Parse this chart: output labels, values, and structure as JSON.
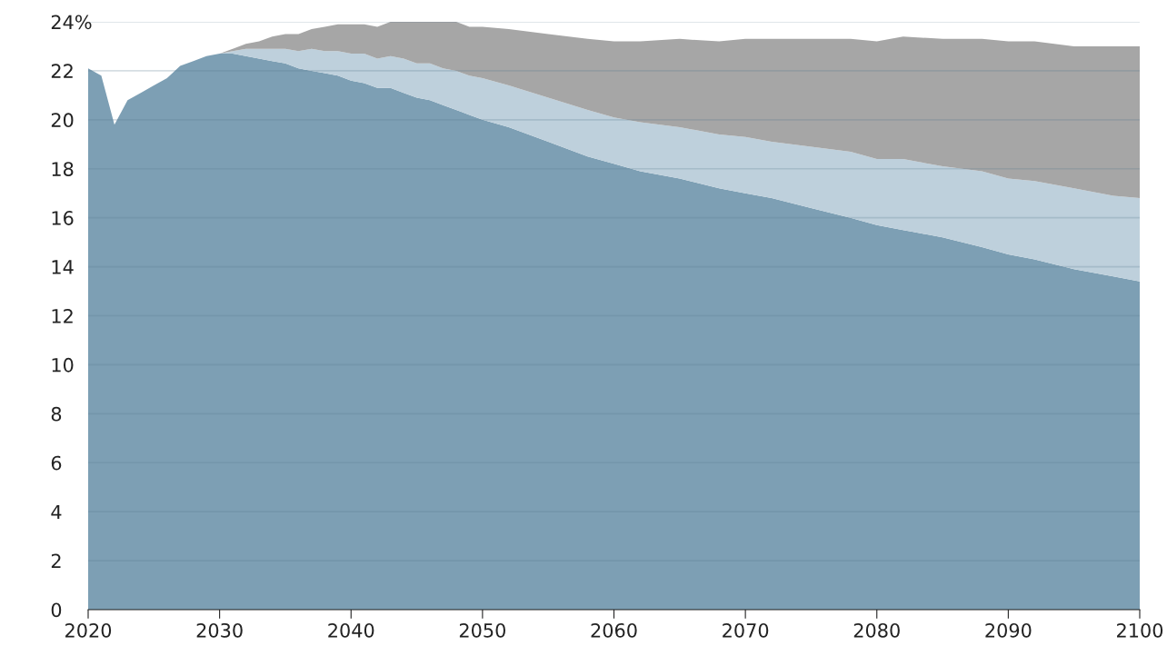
{
  "chart_data": {
    "type": "area",
    "stacked": true,
    "x": [
      2020,
      2021,
      2022,
      2023,
      2024,
      2025,
      2026,
      2027,
      2028,
      2029,
      2030,
      2031,
      2032,
      2033,
      2034,
      2035,
      2036,
      2037,
      2038,
      2039,
      2040,
      2041,
      2042,
      2043,
      2044,
      2045,
      2046,
      2047,
      2048,
      2049,
      2050,
      2052,
      2055,
      2058,
      2060,
      2062,
      2065,
      2068,
      2070,
      2072,
      2075,
      2078,
      2080,
      2082,
      2085,
      2088,
      2090,
      2092,
      2095,
      2098,
      2100
    ],
    "series": [
      {
        "color": "#7d9fb4",
        "values": [
          22.1,
          21.8,
          19.8,
          20.8,
          21.1,
          21.4,
          21.7,
          22.2,
          22.4,
          22.6,
          22.7,
          22.7,
          22.6,
          22.5,
          22.4,
          22.3,
          22.1,
          22.0,
          21.9,
          21.8,
          21.6,
          21.5,
          21.3,
          21.3,
          21.1,
          20.9,
          20.8,
          20.6,
          20.4,
          20.2,
          20.0,
          19.7,
          19.1,
          18.5,
          18.2,
          17.9,
          17.6,
          17.2,
          17.0,
          16.8,
          16.4,
          16.0,
          15.7,
          15.5,
          15.2,
          14.8,
          14.5,
          14.3,
          13.9,
          13.6,
          13.4
        ]
      },
      {
        "color": "#bed0dc",
        "values": [
          0,
          0,
          0,
          0,
          0,
          0,
          0,
          0,
          0,
          0,
          0,
          0.1,
          0.3,
          0.4,
          0.5,
          0.6,
          0.7,
          0.9,
          0.9,
          1.0,
          1.1,
          1.2,
          1.2,
          1.3,
          1.4,
          1.4,
          1.5,
          1.5,
          1.6,
          1.6,
          1.7,
          1.7,
          1.8,
          1.9,
          1.9,
          2.0,
          2.1,
          2.2,
          2.3,
          2.3,
          2.5,
          2.7,
          2.7,
          2.9,
          2.9,
          3.1,
          3.1,
          3.2,
          3.3,
          3.3,
          3.4
        ]
      },
      {
        "color": "#a6a6a6",
        "values": [
          0,
          0,
          0,
          0,
          0,
          0,
          0,
          0,
          0,
          0,
          0,
          0.1,
          0.2,
          0.3,
          0.5,
          0.6,
          0.7,
          0.8,
          1.0,
          1.1,
          1.2,
          1.2,
          1.3,
          1.4,
          1.5,
          1.7,
          1.7,
          1.9,
          2.0,
          2.0,
          2.1,
          2.3,
          2.6,
          2.9,
          3.1,
          3.3,
          3.6,
          3.8,
          4.0,
          4.2,
          4.4,
          4.6,
          4.8,
          5.0,
          5.2,
          5.4,
          5.6,
          5.7,
          5.8,
          6.1,
          6.2
        ]
      }
    ],
    "xlim": [
      2020,
      2100
    ],
    "xticks": [
      2020,
      2030,
      2040,
      2050,
      2060,
      2070,
      2080,
      2090,
      2100
    ],
    "ylim": [
      0,
      24
    ],
    "yticks": [
      0,
      2,
      4,
      6,
      8,
      10,
      12,
      14,
      16,
      18,
      20,
      22,
      {
        "value": 24,
        "label": "24%"
      }
    ],
    "grid": "y"
  }
}
